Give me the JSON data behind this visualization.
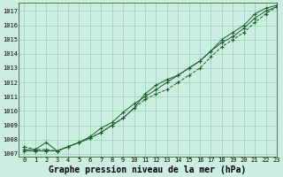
{
  "title": "Graphe pression niveau de la mer (hPa)",
  "xlim": [
    -0.5,
    23
  ],
  "ylim": [
    1006.8,
    1017.6
  ],
  "yticks": [
    1007,
    1008,
    1009,
    1010,
    1011,
    1012,
    1013,
    1014,
    1015,
    1016,
    1017
  ],
  "xticks": [
    0,
    1,
    2,
    3,
    4,
    5,
    6,
    7,
    8,
    9,
    10,
    11,
    12,
    13,
    14,
    15,
    16,
    17,
    18,
    19,
    20,
    21,
    22,
    23
  ],
  "background_color": "#cceee0",
  "grid_color": "#99ccbb",
  "line_color": "#1a5c2a",
  "series1": [
    1007.3,
    1007.3,
    1007.8,
    1007.2,
    1007.5,
    1007.8,
    1008.2,
    1008.8,
    1009.2,
    1009.9,
    1010.5,
    1011.0,
    1011.5,
    1012.0,
    1012.5,
    1013.0,
    1013.5,
    1014.2,
    1015.0,
    1015.5,
    1016.0,
    1016.8,
    1017.2,
    1017.4
  ],
  "series2": [
    1007.5,
    1007.3,
    1007.3,
    1007.2,
    1007.5,
    1007.8,
    1008.1,
    1008.5,
    1009.0,
    1009.5,
    1010.2,
    1010.8,
    1011.2,
    1011.5,
    1012.0,
    1012.5,
    1013.0,
    1013.8,
    1014.5,
    1015.0,
    1015.5,
    1016.2,
    1016.8,
    1017.3
  ],
  "series3": [
    1007.2,
    1007.2,
    1007.2,
    1007.2,
    1007.5,
    1007.8,
    1008.1,
    1008.5,
    1009.0,
    1009.5,
    1010.2,
    1011.2,
    1011.8,
    1012.2,
    1012.5,
    1013.0,
    1013.5,
    1014.2,
    1014.8,
    1015.2,
    1015.8,
    1016.5,
    1017.0,
    1017.3
  ],
  "title_fontsize": 7,
  "tick_fontsize": 5
}
